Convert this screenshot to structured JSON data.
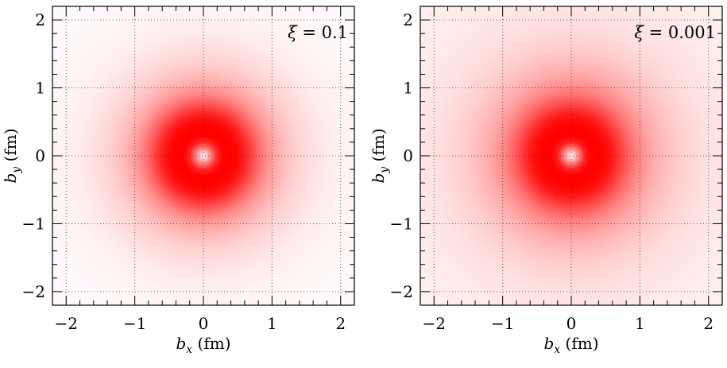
{
  "chart_data": [
    {
      "type": "heatmap",
      "annotation": {
        "symbol": "ξ",
        "equals": " = ",
        "value": "0.1"
      },
      "xlabel": {
        "var": "b",
        "sub": "x",
        "unit": " (fm)"
      },
      "ylabel": {
        "var": "b",
        "sub": "y",
        "unit": " (fm)"
      },
      "xlim": [
        -2.2,
        2.2
      ],
      "ylim": [
        -2.2,
        2.2
      ],
      "xticks": [
        -2,
        -1,
        0,
        1,
        2
      ],
      "yticks": [
        -2,
        -1,
        0,
        1,
        2
      ],
      "xtick_labels": [
        "−2",
        "−1",
        "0",
        "1",
        "2"
      ],
      "ytick_labels": [
        "−2",
        "−1",
        "0",
        "1",
        "2"
      ],
      "grid": true,
      "colormap": {
        "low": "#ffffff",
        "high": "#ff0000"
      },
      "profile": {
        "r_fm": [
          0,
          0.1,
          0.2,
          0.3,
          0.4,
          0.5,
          0.6,
          0.7,
          0.8,
          0.9,
          1.0,
          1.2,
          1.4,
          1.6,
          1.8,
          2.0,
          2.2,
          2.6,
          3.2
        ],
        "intensity": [
          0,
          0.45,
          0.85,
          1.0,
          1.0,
          0.97,
          0.88,
          0.74,
          0.6,
          0.48,
          0.38,
          0.25,
          0.17,
          0.12,
          0.08,
          0.055,
          0.04,
          0.025,
          0.015
        ]
      }
    },
    {
      "type": "heatmap",
      "annotation": {
        "symbol": "ξ",
        "equals": " = ",
        "value": "0.001"
      },
      "xlabel": {
        "var": "b",
        "sub": "x",
        "unit": " (fm)"
      },
      "ylabel": {
        "var": "b",
        "sub": "y",
        "unit": " (fm)"
      },
      "xlim": [
        -2.2,
        2.2
      ],
      "ylim": [
        -2.2,
        2.2
      ],
      "xticks": [
        -2,
        -1,
        0,
        1,
        2
      ],
      "yticks": [
        -2,
        -1,
        0,
        1,
        2
      ],
      "xtick_labels": [
        "−2",
        "−1",
        "0",
        "1",
        "2"
      ],
      "ytick_labels": [
        "−2",
        "−1",
        "0",
        "1",
        "2"
      ],
      "grid": true,
      "colormap": {
        "low": "#ffffff",
        "high": "#ff0000"
      },
      "profile": {
        "r_fm": [
          0,
          0.1,
          0.2,
          0.3,
          0.4,
          0.5,
          0.6,
          0.7,
          0.8,
          0.9,
          1.0,
          1.2,
          1.4,
          1.6,
          1.8,
          2.0,
          2.2,
          2.6,
          3.2
        ],
        "intensity": [
          0,
          0.45,
          0.88,
          1.0,
          1.0,
          0.97,
          0.9,
          0.78,
          0.66,
          0.55,
          0.46,
          0.33,
          0.25,
          0.19,
          0.15,
          0.12,
          0.1,
          0.075,
          0.055
        ]
      }
    }
  ]
}
